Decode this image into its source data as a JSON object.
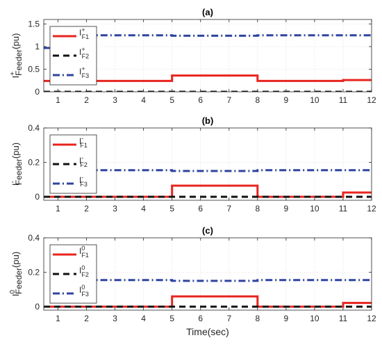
{
  "chart_data": [
    {
      "type": "line",
      "title": "(a)",
      "xlabel": "",
      "ylabel": {
        "base": "I",
        "sup": "+",
        "sub": "Feeder",
        "unit": "(pu)"
      },
      "xlim": [
        0.5,
        12
      ],
      "ylim": [
        0,
        1.6
      ],
      "xticks": [
        1,
        2,
        3,
        4,
        5,
        6,
        7,
        8,
        9,
        10,
        11,
        12
      ],
      "yticks": [
        0,
        0.5,
        1,
        1.5
      ],
      "yticklabels": [
        "0",
        "0.5",
        "1",
        "1.5"
      ],
      "grid": true,
      "legend_position": "top-left",
      "series": [
        {
          "name": "I_F1^+",
          "legend": {
            "base": "I",
            "sup": "+",
            "sub": "F1"
          },
          "color": "#e8241f",
          "style": "solid",
          "x": [
            0.5,
            1.0,
            5.0,
            5.0,
            8.0,
            8.0,
            11.0,
            11.0,
            12.0
          ],
          "y": [
            0.24,
            0.24,
            0.24,
            0.36,
            0.36,
            0.24,
            0.24,
            0.26,
            0.26
          ]
        },
        {
          "name": "I_F2^+",
          "legend": {
            "base": "I",
            "sup": "+",
            "sub": "F2"
          },
          "color": "#111111",
          "style": "dash",
          "x": [
            0.5,
            12.0
          ],
          "y": [
            0.0,
            0.0
          ]
        },
        {
          "name": "I_F3^+",
          "legend": {
            "base": "I",
            "sup": "+",
            "sub": "F3"
          },
          "color": "#2e44a0",
          "style": "dashdot",
          "x": [
            0.5,
            0.9,
            0.9,
            5.0,
            5.0,
            8.0,
            8.0,
            12.0
          ],
          "y": [
            0.97,
            0.97,
            1.25,
            1.25,
            1.24,
            1.24,
            1.25,
            1.25
          ]
        }
      ]
    },
    {
      "type": "line",
      "title": "(b)",
      "xlabel": "",
      "ylabel": {
        "base": "I",
        "sup": "-",
        "sub": "Feeder",
        "unit": "(pu)"
      },
      "xlim": [
        0.5,
        12
      ],
      "ylim": [
        -0.02,
        0.4
      ],
      "xticks": [
        1,
        2,
        3,
        4,
        5,
        6,
        7,
        8,
        9,
        10,
        11,
        12
      ],
      "yticks": [
        0,
        0.2,
        0.4
      ],
      "yticklabels": [
        "0",
        "0.2",
        "0.4"
      ],
      "grid": true,
      "legend_position": "top-left",
      "series": [
        {
          "name": "I_F1^-",
          "legend": {
            "base": "I",
            "sup": "-",
            "sub": "F1"
          },
          "color": "#e8241f",
          "style": "solid",
          "x": [
            0.5,
            5.0,
            5.0,
            8.0,
            8.0,
            11.0,
            11.0,
            12.0
          ],
          "y": [
            0.0,
            0.0,
            0.065,
            0.065,
            0.0,
            0.0,
            0.025,
            0.025
          ]
        },
        {
          "name": "I_F2^-",
          "legend": {
            "base": "I",
            "sup": "-",
            "sub": "F2"
          },
          "color": "#111111",
          "style": "dash",
          "x": [
            0.5,
            12.0
          ],
          "y": [
            0.0,
            0.0
          ]
        },
        {
          "name": "I_F3^-",
          "legend": {
            "base": "I",
            "sup": "-",
            "sub": "F3"
          },
          "color": "#2e44a0",
          "style": "dashdot",
          "x": [
            2.0,
            5.0,
            5.0,
            8.0,
            8.0,
            12.0
          ],
          "y": [
            0.155,
            0.155,
            0.15,
            0.15,
            0.155,
            0.155
          ]
        }
      ]
    },
    {
      "type": "line",
      "title": "(c)",
      "xlabel": "Time(sec)",
      "ylabel": {
        "base": "I",
        "sup": "0",
        "sub": "Feeder",
        "unit": "(pu)"
      },
      "xlim": [
        0.5,
        12
      ],
      "ylim": [
        -0.02,
        0.4
      ],
      "xticks": [
        1,
        2,
        3,
        4,
        5,
        6,
        7,
        8,
        9,
        10,
        11,
        12
      ],
      "yticks": [
        0,
        0.2,
        0.4
      ],
      "yticklabels": [
        "0",
        "0.2",
        "0.4"
      ],
      "grid": true,
      "legend_position": "top-left",
      "series": [
        {
          "name": "I_F1^0",
          "legend": {
            "base": "I",
            "sup": "0",
            "sub": "F1"
          },
          "color": "#e8241f",
          "style": "solid",
          "x": [
            0.5,
            5.0,
            5.0,
            8.0,
            8.0,
            11.0,
            11.0,
            12.0
          ],
          "y": [
            0.0,
            0.0,
            0.06,
            0.06,
            0.0,
            0.0,
            0.022,
            0.022
          ]
        },
        {
          "name": "I_F2^0",
          "legend": {
            "base": "I",
            "sup": "0",
            "sub": "F2"
          },
          "color": "#111111",
          "style": "dash",
          "x": [
            0.5,
            12.0
          ],
          "y": [
            0.0,
            0.0
          ]
        },
        {
          "name": "I_F3^0",
          "legend": {
            "base": "I",
            "sup": "0",
            "sub": "F3"
          },
          "color": "#2e44a0",
          "style": "dashdot",
          "x": [
            2.0,
            5.0,
            5.0,
            8.0,
            8.0,
            12.0
          ],
          "y": [
            0.155,
            0.155,
            0.15,
            0.15,
            0.155,
            0.155
          ]
        }
      ]
    }
  ]
}
